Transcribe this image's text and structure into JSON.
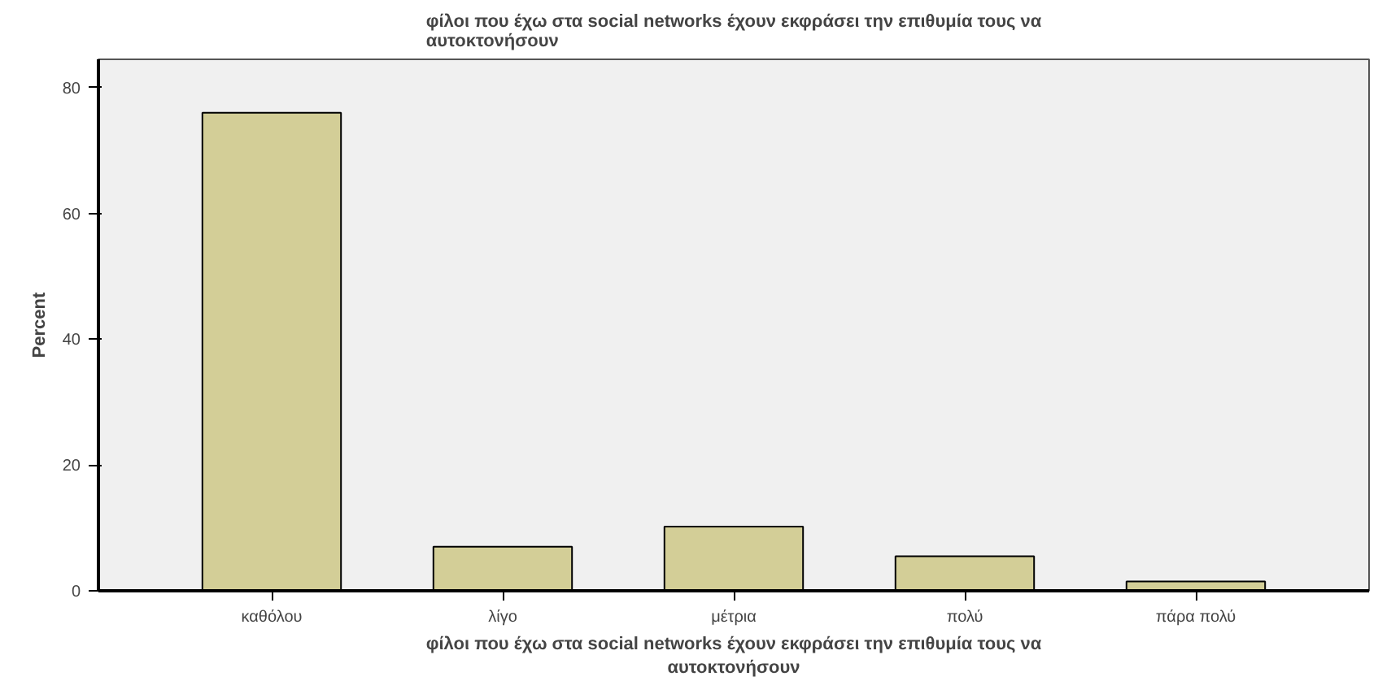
{
  "chart_data": {
    "type": "bar",
    "title": "φίλοι που έχω στα social networks έχουν εκφράσει την επιθυμία τους να\nαυτοκτονήσουν",
    "xlabel": "φίλοι που έχω στα social networks έχουν εκφράσει την επιθυμία τους να\nαυτοκτονήσουν",
    "ylabel": "Percent",
    "categories": [
      "καθόλου",
      "λίγο",
      "μέτρια",
      "πολύ",
      "πάρα πολύ"
    ],
    "values": [
      76,
      7,
      10.2,
      5.5,
      1.5
    ],
    "color": "#d3ce97",
    "ylim": [
      0,
      84.5
    ],
    "yticks": [
      0,
      20,
      40,
      60,
      80
    ],
    "grid": false
  }
}
